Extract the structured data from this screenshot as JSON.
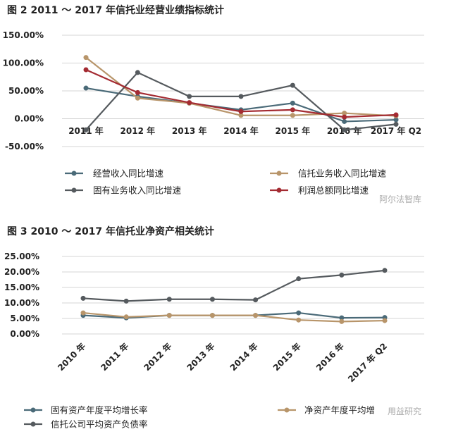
{
  "chart_data": [
    {
      "type": "line",
      "title": "图 2   2011 ～ 2017 年信托业经营业绩指标统计",
      "categories": [
        "2011 年",
        "2012 年",
        "2013 年",
        "2014 年",
        "2015 年",
        "2016 年",
        "2017 年 Q2"
      ],
      "yticks": [
        "150.00%",
        "100.00%",
        "50.00%",
        "0.00%",
        "-50.00%"
      ],
      "ylim": [
        -50,
        150
      ],
      "grid": true,
      "legend": "bottom",
      "series": [
        {
          "name": "经营收入同比增速",
          "color": "#4a6a78",
          "values": [
            55,
            40,
            28,
            16,
            28,
            -5,
            -2
          ]
        },
        {
          "name": "信托业务收入同比增速",
          "color": "#b8956a",
          "values": [
            110,
            37,
            28,
            6,
            6,
            10,
            5
          ]
        },
        {
          "name": "固有业务收入同比增速",
          "color": "#555a5e",
          "values": [
            -20,
            83,
            40,
            40,
            60,
            -20,
            -10
          ]
        },
        {
          "name": "利润总额同比增速",
          "color": "#a42b32",
          "values": [
            88,
            47,
            29,
            13,
            16,
            3,
            7
          ]
        }
      ],
      "watermark": "阿尔法智库"
    },
    {
      "type": "line",
      "title": "图 3   2010 ～ 2017 年信托业净资产相关统计",
      "categories": [
        "2010 年",
        "2011 年",
        "2012 年",
        "2013 年",
        "2014 年",
        "2015 年",
        "2016 年",
        "2017 年 Q2"
      ],
      "yticks": [
        "25.00%",
        "20.00%",
        "15.00%",
        "10.00%",
        "5.00%",
        "0.00%"
      ],
      "ylim": [
        0,
        25
      ],
      "grid": true,
      "legend": "bottom",
      "series": [
        {
          "name": "固有资产年度平均增长率",
          "color": "#4a6a78",
          "values": [
            6,
            5.2,
            6,
            6,
            6,
            6.8,
            5.2,
            5.3
          ]
        },
        {
          "name": "净资产年度平均增",
          "color": "#b8956a",
          "values": [
            6.8,
            5.5,
            6,
            6,
            6,
            4.5,
            4,
            4.3
          ]
        },
        {
          "name": "信托公司平均资产负债率",
          "color": "#555a5e",
          "values": [
            11.5,
            10.6,
            11.2,
            11.2,
            11,
            17.8,
            19,
            20.5
          ]
        }
      ],
      "watermark": "用益研究"
    }
  ]
}
